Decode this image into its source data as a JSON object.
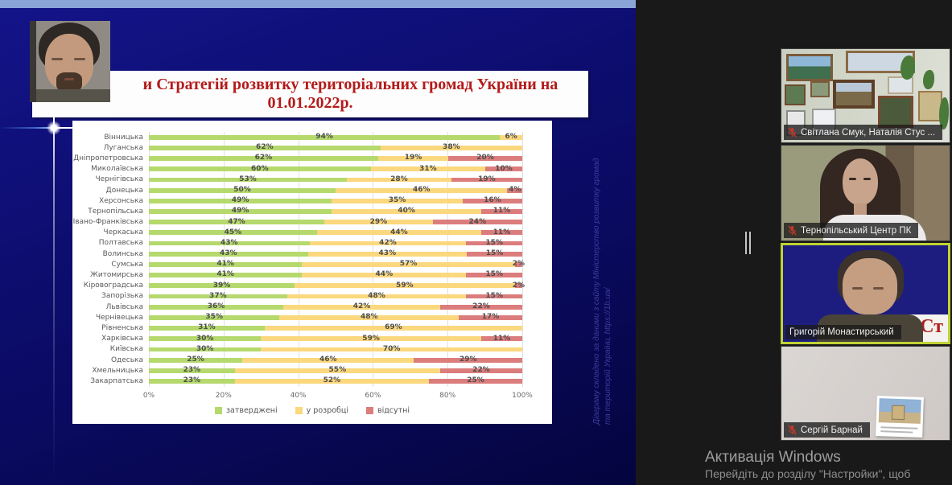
{
  "slide": {
    "title_line1": "и Стратегій розвитку територіальних громад України на",
    "title_line2": "01.01.2022р.",
    "source_line1": "Діаграму складено за даними з сайту Міністерство розвитку громад",
    "source_line2": "та територій України, https://1b.ua/"
  },
  "chart_data": {
    "type": "bar",
    "orientation": "horizontal",
    "stacked": true,
    "title": "Стратегій розвитку територіальних громад України на 01.01.2022р.",
    "categories": [
      "Вінницька",
      "Луганська",
      "Дніпропетровська",
      "Миколаївська",
      "Чернігівська",
      "Донецька",
      "Херсонська",
      "Тернопільська",
      "Івано-Франківська",
      "Черкаська",
      "Полтавська",
      "Волинська",
      "Сумська",
      "Житомирська",
      "Кіровоградська",
      "Запорізька",
      "Львівська",
      "Чернівецька",
      "Рівненська",
      "Харківська",
      "Київська",
      "Одеська",
      "Хмельницька",
      "Закарпатська"
    ],
    "series": [
      {
        "name": "затверджені",
        "color": "#b5d96d",
        "values": [
          94,
          62,
          62,
          60,
          53,
          50,
          49,
          49,
          47,
          45,
          43,
          43,
          41,
          41,
          39,
          37,
          36,
          35,
          31,
          30,
          30,
          25,
          23,
          23
        ]
      },
      {
        "name": "у розробці",
        "color": "#fbd87d",
        "values": [
          6,
          38,
          19,
          31,
          28,
          46,
          35,
          40,
          29,
          44,
          42,
          43,
          57,
          44,
          59,
          48,
          42,
          48,
          69,
          59,
          70,
          46,
          55,
          52
        ]
      },
      {
        "name": "відсутні",
        "color": "#dc7d7d",
        "values": [
          0,
          0,
          20,
          10,
          19,
          4,
          16,
          11,
          24,
          11,
          15,
          15,
          2,
          15,
          2,
          15,
          22,
          17,
          0,
          11,
          0,
          29,
          22,
          25
        ]
      }
    ],
    "x_ticks": [
      "0%",
      "20%",
      "40%",
      "60%",
      "80%",
      "100%"
    ],
    "xlim": [
      0,
      100
    ],
    "grid": true,
    "legend_position": "bottom"
  },
  "participants": [
    {
      "name": "Світлана Смук, Наталія Стус ...",
      "muted": true
    },
    {
      "name": "Тернопільський Центр ПК",
      "muted": true
    },
    {
      "name": "Григорій Монастирський",
      "muted": false,
      "active_speaker": true,
      "shared_text_fragment": "и Ст"
    },
    {
      "name": "Сергій Барнай",
      "muted": true
    }
  ],
  "watermark": {
    "line1": "Активація Windows",
    "line2": "Перейдіть до розділу \"Настройки\", щоб"
  }
}
